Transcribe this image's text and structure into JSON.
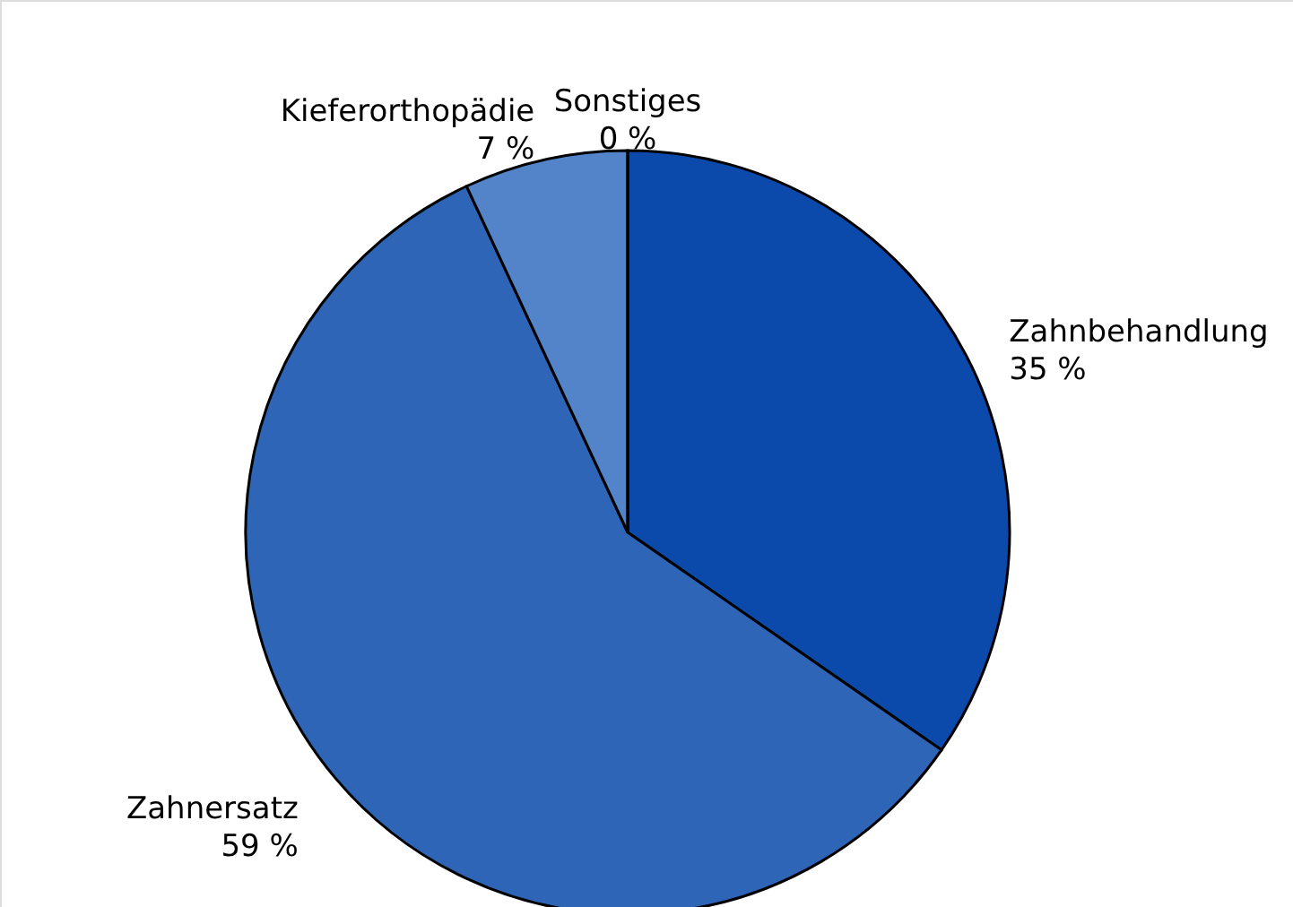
{
  "chart_data": {
    "type": "pie",
    "categories": [
      "Zahnbehandlung",
      "Zahnersatz",
      "Kieferorthopädie",
      "Sonstiges"
    ],
    "values": [
      35,
      59,
      7,
      0
    ],
    "colors": [
      "#0b4aaa",
      "#2f65b7",
      "#5383c8",
      "#1a2a50"
    ],
    "value_labels": [
      "35 %",
      "59 %",
      "7 %",
      "0 %"
    ]
  }
}
